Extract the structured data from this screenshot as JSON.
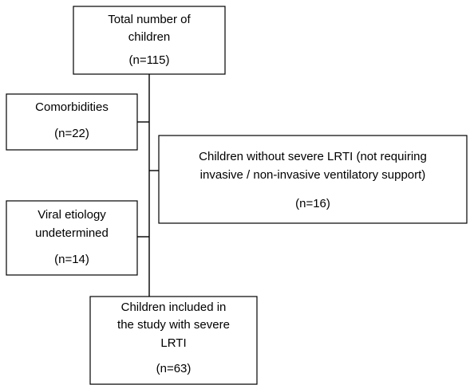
{
  "nodes": [
    {
      "lines": [
        "Total number of",
        "children",
        "(n=115)"
      ]
    },
    {
      "lines": [
        "Comorbidities",
        "(n=22)"
      ]
    },
    {
      "lines": [
        "Children without severe LRTI  (not requiring",
        "invasive / non-invasive ventilatory support)",
        "(n=16)"
      ]
    },
    {
      "lines": [
        "Viral etiology",
        "undetermined",
        "(n=14)"
      ]
    },
    {
      "lines": [
        "Children included in",
        "the study with severe",
        "LRTI",
        "(n=63)"
      ]
    }
  ]
}
